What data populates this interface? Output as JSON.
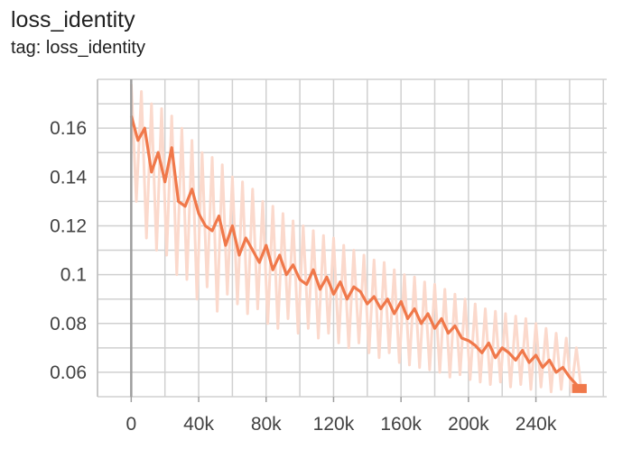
{
  "card": {
    "title": "loss_identity",
    "tag": "tag: loss_identity"
  },
  "chart_data": {
    "type": "line",
    "title": "loss_identity",
    "subtitle": "tag: loss_identity",
    "xlabel": "",
    "ylabel": "",
    "xlim": [
      -20000,
      282000
    ],
    "ylim": [
      0.05,
      0.18
    ],
    "x_ticks": [
      0,
      40000,
      80000,
      120000,
      160000,
      200000,
      240000
    ],
    "x_tick_labels": [
      "0",
      "40k",
      "80k",
      "120k",
      "160k",
      "200k",
      "240k"
    ],
    "y_ticks": [
      0.06,
      0.08,
      0.1,
      0.12,
      0.14,
      0.16
    ],
    "y_tick_labels": [
      "0.06",
      "0.08",
      "0.1",
      "0.12",
      "0.14",
      "0.16"
    ],
    "grid": true,
    "colors": {
      "smoothed": "#f0784a",
      "raw": "#fbd9cc"
    },
    "series": [
      {
        "role": "smoothed",
        "x": [
          0,
          4000,
          8000,
          12000,
          16000,
          20000,
          24000,
          28000,
          32000,
          36000,
          40000,
          44000,
          48000,
          52000,
          56000,
          60000,
          64000,
          68000,
          72000,
          76000,
          80000,
          84000,
          88000,
          92000,
          96000,
          100000,
          104000,
          108000,
          112000,
          116000,
          120000,
          124000,
          128000,
          132000,
          136000,
          140000,
          144000,
          148000,
          152000,
          156000,
          160000,
          164000,
          168000,
          172000,
          176000,
          180000,
          184000,
          188000,
          192000,
          196000,
          200000,
          204000,
          208000,
          212000,
          216000,
          220000,
          224000,
          228000,
          232000,
          236000,
          240000,
          244000,
          248000,
          252000,
          256000,
          260000,
          264000,
          268000
        ],
        "y": [
          0.165,
          0.155,
          0.16,
          0.142,
          0.15,
          0.138,
          0.152,
          0.13,
          0.128,
          0.135,
          0.125,
          0.12,
          0.118,
          0.124,
          0.112,
          0.12,
          0.108,
          0.115,
          0.11,
          0.105,
          0.112,
          0.102,
          0.108,
          0.1,
          0.104,
          0.098,
          0.096,
          0.102,
          0.094,
          0.099,
          0.092,
          0.097,
          0.09,
          0.095,
          0.093,
          0.088,
          0.091,
          0.086,
          0.09,
          0.084,
          0.089,
          0.082,
          0.086,
          0.08,
          0.084,
          0.078,
          0.082,
          0.076,
          0.079,
          0.074,
          0.073,
          0.071,
          0.068,
          0.072,
          0.066,
          0.07,
          0.068,
          0.065,
          0.069,
          0.064,
          0.067,
          0.062,
          0.065,
          0.06,
          0.062,
          0.058,
          0.055,
          0.053
        ]
      },
      {
        "role": "raw",
        "x": [
          0,
          3000,
          6000,
          9000,
          12000,
          15000,
          18000,
          21000,
          24000,
          27000,
          30000,
          33000,
          36000,
          39000,
          42000,
          45000,
          48000,
          51000,
          54000,
          57000,
          60000,
          63000,
          66000,
          69000,
          72000,
          75000,
          78000,
          81000,
          84000,
          87000,
          90000,
          93000,
          96000,
          99000,
          102000,
          105000,
          108000,
          111000,
          114000,
          117000,
          120000,
          123000,
          126000,
          129000,
          132000,
          135000,
          138000,
          141000,
          144000,
          147000,
          150000,
          153000,
          156000,
          159000,
          162000,
          165000,
          168000,
          171000,
          174000,
          177000,
          180000,
          183000,
          186000,
          189000,
          192000,
          195000,
          198000,
          201000,
          204000,
          207000,
          210000,
          213000,
          216000,
          219000,
          222000,
          225000,
          228000,
          231000,
          234000,
          237000,
          240000,
          243000,
          246000,
          249000,
          252000,
          255000,
          258000,
          261000,
          264000,
          267000,
          270000
        ],
        "y": [
          0.178,
          0.13,
          0.175,
          0.115,
          0.17,
          0.11,
          0.168,
          0.108,
          0.165,
          0.1,
          0.16,
          0.098,
          0.155,
          0.09,
          0.15,
          0.095,
          0.148,
          0.085,
          0.145,
          0.092,
          0.14,
          0.088,
          0.138,
          0.084,
          0.135,
          0.086,
          0.13,
          0.08,
          0.128,
          0.078,
          0.125,
          0.082,
          0.122,
          0.076,
          0.12,
          0.078,
          0.118,
          0.074,
          0.116,
          0.076,
          0.115,
          0.072,
          0.112,
          0.07,
          0.11,
          0.072,
          0.108,
          0.068,
          0.106,
          0.066,
          0.105,
          0.068,
          0.102,
          0.064,
          0.1,
          0.063,
          0.099,
          0.062,
          0.097,
          0.061,
          0.096,
          0.06,
          0.094,
          0.058,
          0.092,
          0.059,
          0.09,
          0.057,
          0.088,
          0.056,
          0.086,
          0.055,
          0.085,
          0.056,
          0.084,
          0.054,
          0.083,
          0.055,
          0.082,
          0.053,
          0.08,
          0.054,
          0.078,
          0.052,
          0.076,
          0.053,
          0.074,
          0.052,
          0.07,
          0.052,
          0.052
        ]
      }
    ]
  }
}
